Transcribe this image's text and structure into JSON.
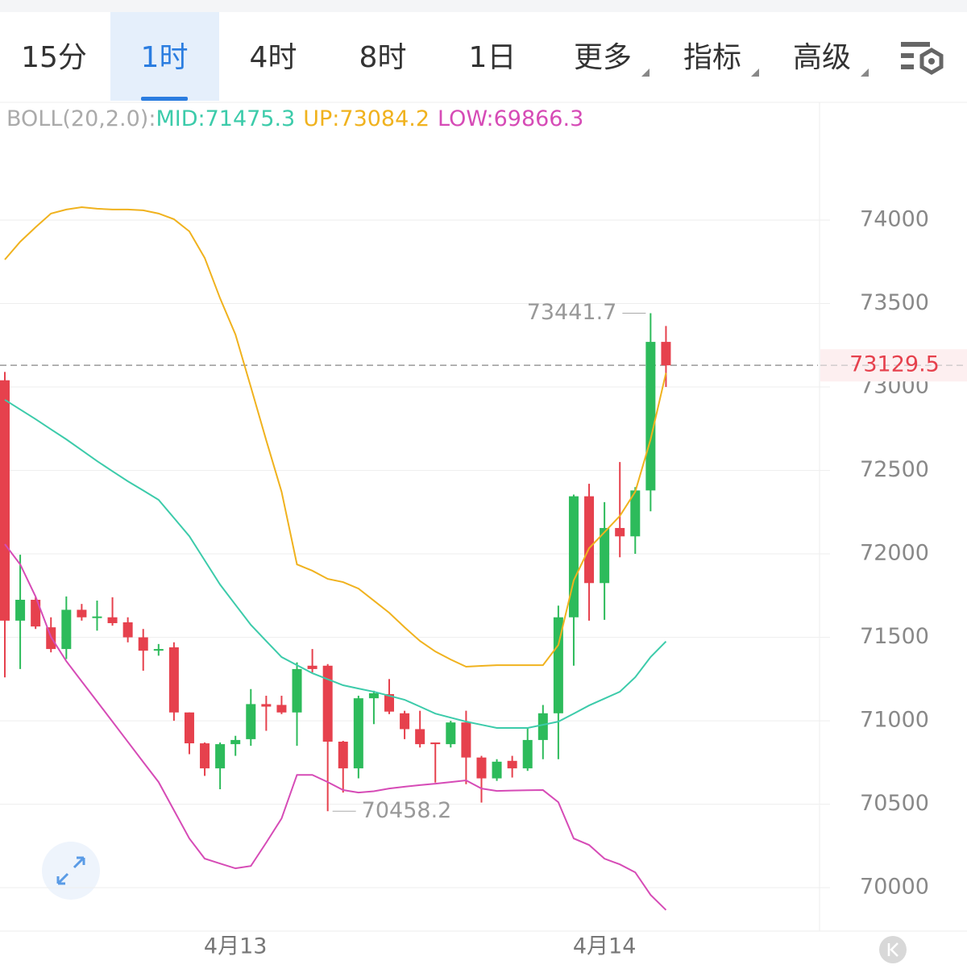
{
  "tabs": [
    "15分",
    "1时",
    "4时",
    "8时",
    "1日",
    "更多",
    "指标",
    "高级"
  ],
  "selected_tab": 1,
  "chart_data": {
    "type": "candlestick",
    "indicator_label": "BOLL(20,2.0):",
    "categories": [
      null,
      null,
      null,
      null,
      null,
      null,
      null,
      null,
      null,
      null,
      null,
      null,
      null,
      null,
      null,
      "4月13",
      null,
      null,
      null,
      null,
      null,
      null,
      null,
      null,
      null,
      null,
      null,
      null,
      null,
      null,
      null,
      null,
      null,
      null,
      null,
      null,
      null,
      null,
      null,
      "4月14",
      null,
      null,
      null,
      null
    ],
    "candles": {
      "up_color": "#2dbb5b",
      "down_color": "#e6414d",
      "open": [
        73040,
        71600,
        71725,
        71560,
        71430,
        71665,
        71620,
        71620,
        71590,
        71500,
        71420,
        71440,
        71050,
        70865,
        70715,
        70860,
        70890,
        71100,
        71095,
        71050,
        71330,
        71330,
        70875,
        70715,
        71135,
        71160,
        71045,
        70950,
        70870,
        70860,
        70990,
        70780,
        70655,
        70760,
        70715,
        70885,
        71045,
        71620,
        72345,
        71825,
        72155,
        72105,
        72380,
        73270
      ],
      "high": [
        73090,
        71995,
        71740,
        71620,
        71745,
        71700,
        71720,
        71740,
        71620,
        71550,
        71460,
        71470,
        71050,
        70870,
        70870,
        70910,
        71190,
        71150,
        71150,
        71350,
        71430,
        71340,
        70880,
        71150,
        71180,
        71250,
        71060,
        71060,
        70870,
        71000,
        71060,
        70790,
        70770,
        70790,
        70960,
        71095,
        71690,
        72355,
        72420,
        72310,
        72550,
        72400,
        73441.7,
        73365
      ],
      "low": [
        71260,
        71310,
        71550,
        71410,
        71370,
        71600,
        71540,
        71570,
        71470,
        71300,
        71390,
        71000,
        70800,
        70670,
        70590,
        70790,
        70850,
        70940,
        71040,
        70850,
        71290,
        70458.2,
        70570,
        70655,
        70980,
        71040,
        70890,
        70840,
        70630,
        70840,
        70620,
        70510,
        70640,
        70660,
        70700,
        70770,
        70770,
        71330,
        71600,
        71605,
        71980,
        72000,
        72255,
        73000
      ],
      "close": [
        71600,
        71725,
        71565,
        71430,
        71665,
        71620,
        71625,
        71585,
        71500,
        71420,
        71430,
        71050,
        70865,
        70715,
        70860,
        70885,
        71100,
        71085,
        71050,
        71310,
        71310,
        70875,
        70715,
        71135,
        71165,
        71055,
        70950,
        70860,
        70860,
        70990,
        70780,
        70655,
        70755,
        70715,
        70885,
        71045,
        71620,
        72345,
        71825,
        72155,
        72105,
        72380,
        73270,
        73129.5
      ]
    },
    "bands": [
      {
        "name": "MID:71475.3",
        "color": "#3ccbaa",
        "values": [
          72923,
          72865,
          72807,
          72746,
          72686,
          72621,
          72556,
          72495,
          72435,
          72380,
          72324,
          72215,
          72106,
          71961,
          71816,
          71695,
          71575,
          71478,
          71382,
          71333,
          71285,
          71249,
          71213,
          71193,
          71174,
          71150,
          71126,
          71085,
          71043,
          71019,
          70995,
          70976,
          70957,
          70957,
          70957,
          70976,
          70995,
          71043,
          71092,
          71133,
          71174,
          71261,
          71382,
          71475.3
        ]
      },
      {
        "name": "UP:73084.2",
        "color": "#f0b21e",
        "values": [
          73763,
          73870,
          73957,
          74039,
          74063,
          74077,
          74068,
          74063,
          74063,
          74058,
          74039,
          74005,
          73932,
          73773,
          73531,
          73314,
          73000,
          72681,
          72372,
          71937,
          71899,
          71850,
          71831,
          71792,
          71720,
          71647,
          71560,
          71478,
          71415,
          71367,
          71324,
          71329,
          71333,
          71333,
          71333,
          71333,
          71454,
          71841,
          72034,
          72130,
          72227,
          72372,
          72686,
          73084.2
        ]
      },
      {
        "name": "LOW:69866.3",
        "color": "#d64bb6",
        "values": [
          72058,
          71937,
          71744,
          71502,
          71357,
          71236,
          71116,
          70995,
          70874,
          70753,
          70633,
          70464,
          70295,
          70174,
          70145,
          70116,
          70130,
          70270,
          70415,
          70676,
          70676,
          70633,
          70585,
          70570,
          70578,
          70594,
          70605,
          70615,
          70623,
          70633,
          70643,
          70594,
          70580,
          70582,
          70584,
          70585,
          70512,
          70295,
          70256,
          70174,
          70140,
          70092,
          69957,
          69866.3
        ]
      }
    ],
    "last_price": 73129.5,
    "max_index": 42,
    "min_index": 21,
    "ylim": [
      69740,
      74700
    ],
    "yticks": [
      70000,
      70500,
      71000,
      71500,
      72000,
      72500,
      73000,
      73500,
      74000
    ],
    "grid": true
  }
}
